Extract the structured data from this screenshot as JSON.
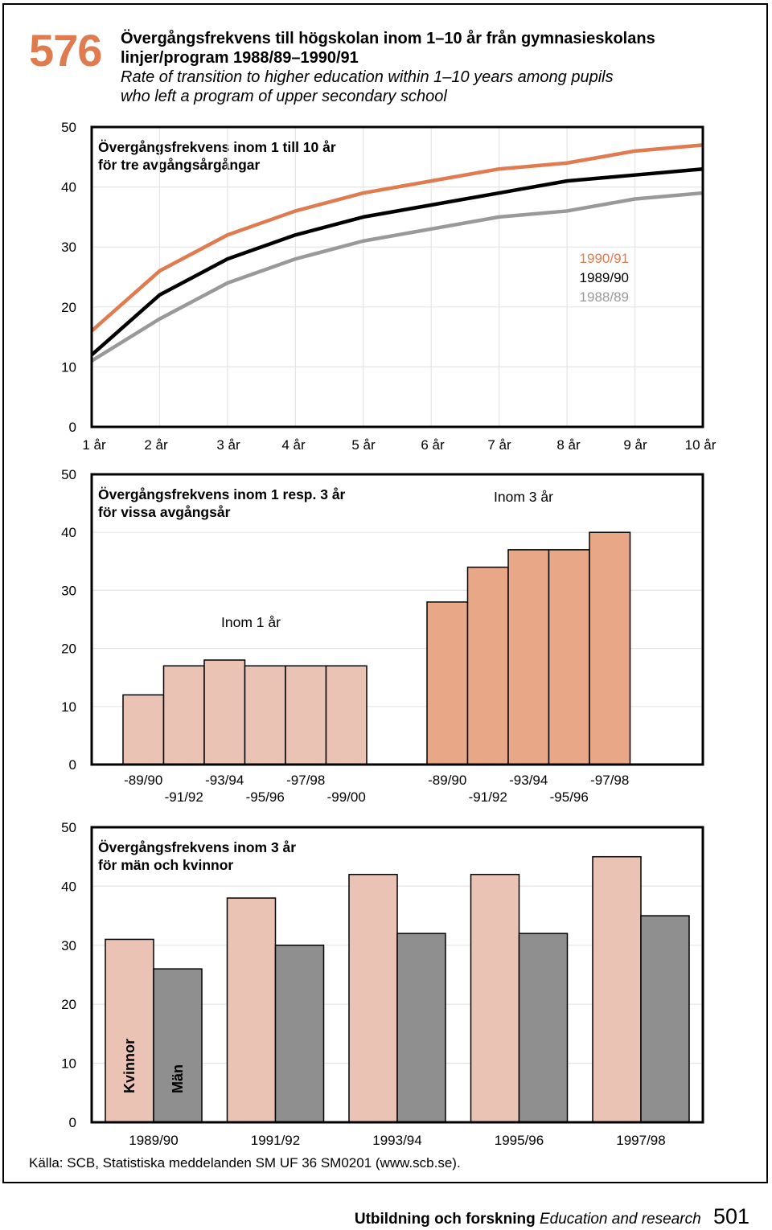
{
  "figure": {
    "number": "576",
    "title_sv_line1": "Övergångsfrekvens till högskolan inom 1–10 år från gymnasieskolans",
    "title_sv_line2": "linjer/program 1988/89–1990/91",
    "title_en_line1": "Rate of transition to higher education within 1–10 years among pupils",
    "title_en_line2": "who left a program of upper secondary school"
  },
  "source": "Källa: SCB, Statistiska meddelanden SM UF 36 SM0201 (www.scb.se).",
  "footer": {
    "sv": "Utbildning och forskning",
    "en": "Education and research",
    "page": "501"
  },
  "colors": {
    "orange": "#E07A4F",
    "black": "#000000",
    "gray": "#999999",
    "panel_bg": "#FFFFFF",
    "grid": "#E5E5E5",
    "bar_light": "#EBC3B4",
    "bar_mid": "#E8A888",
    "bar_gray": "#8F8F8F"
  },
  "chart_data": [
    {
      "type": "line",
      "title_line1": "Övergångsfrekvens inom 1 till 10 år",
      "title_line2": "för tre avgångsårgångar",
      "categories": [
        "1 år",
        "2 år",
        "3 år",
        "4 år",
        "5 år",
        "6 år",
        "7 år",
        "8 år",
        "9 år",
        "10 år"
      ],
      "ylim": [
        0,
        50
      ],
      "yticks": [
        0,
        10,
        20,
        30,
        40,
        50
      ],
      "grid": true,
      "legend_position": "right",
      "series": [
        {
          "name": "1990/91",
          "color": "#E07A4F",
          "values": [
            16,
            26,
            32,
            36,
            39,
            41,
            43,
            44,
            46,
            47
          ]
        },
        {
          "name": "1989/90",
          "color": "#000000",
          "values": [
            12,
            22,
            28,
            32,
            35,
            37,
            39,
            41,
            42,
            43
          ]
        },
        {
          "name": "1988/89",
          "color": "#999999",
          "values": [
            11,
            18,
            24,
            28,
            31,
            33,
            35,
            36,
            38,
            39
          ]
        }
      ]
    },
    {
      "type": "bar",
      "title_line1": "Övergångsfrekvens inom 1 resp. 3 år",
      "title_line2": "för vissa avgångsår",
      "ylim": [
        0,
        50
      ],
      "yticks": [
        0,
        10,
        20,
        30,
        40,
        50
      ],
      "grid": true,
      "groups": [
        {
          "name": "Inom 1 år",
          "color": "#EBC3B4",
          "categories": [
            "-89/90",
            "-91/92",
            "-93/94",
            "-95/96",
            "-97/98",
            "-99/00"
          ],
          "values": [
            12,
            17,
            18,
            17,
            17,
            17
          ]
        },
        {
          "name": "Inom 3 år",
          "color": "#E8A888",
          "categories": [
            "-89/90",
            "-91/92",
            "-93/94",
            "-95/96",
            "-97/98"
          ],
          "values": [
            28,
            34,
            37,
            37,
            40
          ]
        }
      ]
    },
    {
      "type": "bar",
      "title_line1": "Övergångsfrekvens inom 3 år",
      "title_line2": "för män och kvinnor",
      "categories": [
        "1989/90",
        "1991/92",
        "1993/94",
        "1995/96",
        "1997/98"
      ],
      "ylim": [
        0,
        50
      ],
      "yticks": [
        0,
        10,
        20,
        30,
        40,
        50
      ],
      "grid": true,
      "series": [
        {
          "name": "Kvinnor",
          "color": "#EBC3B4",
          "values": [
            31,
            38,
            42,
            42,
            45
          ]
        },
        {
          "name": "Män",
          "color": "#8F8F8F",
          "values": [
            26,
            30,
            32,
            32,
            35
          ]
        }
      ]
    }
  ]
}
